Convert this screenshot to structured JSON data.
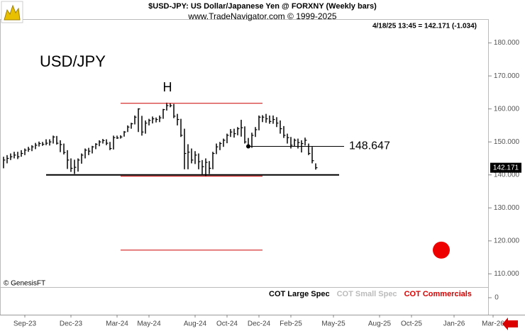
{
  "chart_data": {
    "type": "ohlc",
    "title": "$USD-JPY:  US Dollar/Japanese Yen @ FORXNY  (Weekly bars)",
    "subtitle": "www.TradeNavigator.com © 1999-2025",
    "quote": "4/18/25 13:45 = 142.171 (-1.034)",
    "symbol": "USD/JPY",
    "pattern_label": "H",
    "copyright": "© GenesisFT",
    "color": "#000000",
    "high": [
      145.5,
      146,
      146.5,
      147,
      147,
      147.5,
      148,
      148.5,
      149,
      149.7,
      150.1,
      150,
      150.8,
      150.8,
      151.9,
      151.8,
      150.5,
      149.5,
      147.5,
      145,
      144.6,
      145,
      146.5,
      148,
      148.2,
      148.8,
      149.6,
      150.5,
      150.9,
      150.8,
      150,
      151.9,
      151.9,
      152,
      153.3,
      155,
      155.8,
      158,
      160.2,
      157.9,
      156.5,
      157,
      157.7,
      157.4,
      158,
      160,
      161.9,
      161.8,
      161.5,
      158.5,
      157,
      154,
      149.3,
      148,
      147.2,
      146.5,
      144.5,
      145,
      144.2,
      147,
      149.5,
      150,
      151,
      152.5,
      153.9,
      154,
      154.5,
      156.7,
      154.7,
      151.2,
      152.8,
      154.5,
      158,
      158.1,
      158.5,
      158,
      158,
      157.5,
      156.5,
      154.8,
      152.5,
      151.5,
      151,
      151,
      150.5,
      151.3,
      149.5,
      148.5,
      143.5
    ],
    "low": [
      142,
      143.5,
      144.5,
      145,
      144.8,
      145.5,
      146,
      147,
      147.2,
      147.8,
      148.6,
      148.8,
      149,
      148.9,
      149.5,
      149.2,
      146.9,
      146.2,
      141.8,
      140.9,
      140.3,
      141,
      143.4,
      145,
      146,
      146.5,
      147.8,
      148.7,
      149.5,
      149,
      147.5,
      147.7,
      150.9,
      151,
      151.6,
      153,
      154,
      155.3,
      153,
      151.9,
      152.5,
      155,
      155.6,
      155.9,
      156,
      157,
      159.5,
      160.5,
      157.2,
      155,
      151.5,
      141.7,
      141.7,
      143.5,
      143.3,
      141.7,
      140.2,
      139.6,
      140.3,
      141.7,
      146.3,
      147.5,
      148.5,
      149.6,
      151.5,
      151.3,
      152,
      151.6,
      149.5,
      148.3,
      148.2,
      151.5,
      153.5,
      156,
      155.8,
      155.5,
      155.5,
      154.5,
      152.5,
      151.2,
      149.5,
      148,
      148.6,
      148,
      146.8,
      148.9,
      146,
      143.5,
      141.6
    ],
    "close": [
      144.5,
      145,
      145.5,
      146,
      145.5,
      146.5,
      147.5,
      147.8,
      148.5,
      149,
      149.5,
      149.3,
      149.6,
      150,
      151.5,
      149.6,
      149.2,
      146.8,
      144.5,
      142,
      142.3,
      144.5,
      146,
      147.5,
      147.2,
      148.5,
      149.3,
      150,
      150.4,
      149.6,
      148,
      151.3,
      151.2,
      151.5,
      153,
      154.5,
      155.5,
      157.5,
      160,
      153,
      155.7,
      156.5,
      157,
      156.8,
      157.3,
      159.8,
      161,
      161,
      157.8,
      156.8,
      152,
      146.5,
      146.9,
      144.5,
      146,
      144,
      142.5,
      143.8,
      142,
      146.5,
      148.5,
      149.5,
      150.5,
      152,
      153,
      152.5,
      154,
      154.3,
      150,
      148.647,
      152,
      153.7,
      157.5,
      157.5,
      157,
      156.2,
      156.8,
      155.7,
      154,
      152,
      151.3,
      149,
      150.5,
      149.8,
      149.5,
      150.5,
      146.5,
      144.3,
      142.171
    ],
    "ylim": [
      106,
      187
    ],
    "yticks": [
      {
        "value": 110,
        "label": "110.000"
      },
      {
        "value": 120,
        "label": "120.000"
      },
      {
        "value": 130,
        "label": "130.000"
      },
      {
        "value": 140,
        "label": "140.000"
      },
      {
        "value": 150,
        "label": "150.000"
      },
      {
        "value": 160,
        "label": "160.000"
      },
      {
        "value": 170,
        "label": "170.000"
      },
      {
        "value": 180,
        "label": "180.000"
      }
    ],
    "xlim": [
      -1,
      136.6
    ],
    "xticks": [
      {
        "value": 6,
        "label": "Sep-23"
      },
      {
        "value": 19,
        "label": "Dec-23"
      },
      {
        "value": 32,
        "label": "Mar-24"
      },
      {
        "value": 41,
        "label": "May-24"
      },
      {
        "value": 54,
        "label": "Aug-24"
      },
      {
        "value": 63,
        "label": "Oct-24"
      },
      {
        "value": 72,
        "label": "Dec-24"
      },
      {
        "value": 81,
        "label": "Feb-25"
      },
      {
        "value": 93,
        "label": "May-25"
      },
      {
        "value": 106,
        "label": "Aug-25"
      },
      {
        "value": 115,
        "label": "Oct-25"
      },
      {
        "value": 127,
        "label": "Jan-26"
      },
      {
        "value": 138,
        "label": "Mar-26"
      }
    ],
    "lines": [
      {
        "value": 140,
        "x": [
          12,
          94.6
        ],
        "color": "#000000",
        "width": 2
      },
      {
        "value": 148.647,
        "x": [
          69,
          96
        ],
        "color": "#000000",
        "width": 1,
        "labeled": true
      },
      {
        "value": 161.7,
        "x": [
          33,
          73
        ],
        "color": "#cc0000",
        "width": 1
      },
      {
        "value": 139.6,
        "x": [
          33,
          73
        ],
        "color": "#cc0000",
        "width": 1
      },
      {
        "value": 117.2,
        "x": [
          33,
          73
        ],
        "color": "#cc0000",
        "width": 1
      }
    ],
    "marker": {
      "x": 123.4,
      "y": 117.2,
      "color": "#ee0000"
    },
    "cot_panel": {
      "series": [
        {
          "name": "COT Large Spec",
          "color": "#000000"
        },
        {
          "name": "COT Small Spec",
          "color": "#bbbbbb"
        },
        {
          "name": "COT Commercials",
          "color": "#dd0000"
        }
      ],
      "yticks": [
        0
      ]
    }
  }
}
